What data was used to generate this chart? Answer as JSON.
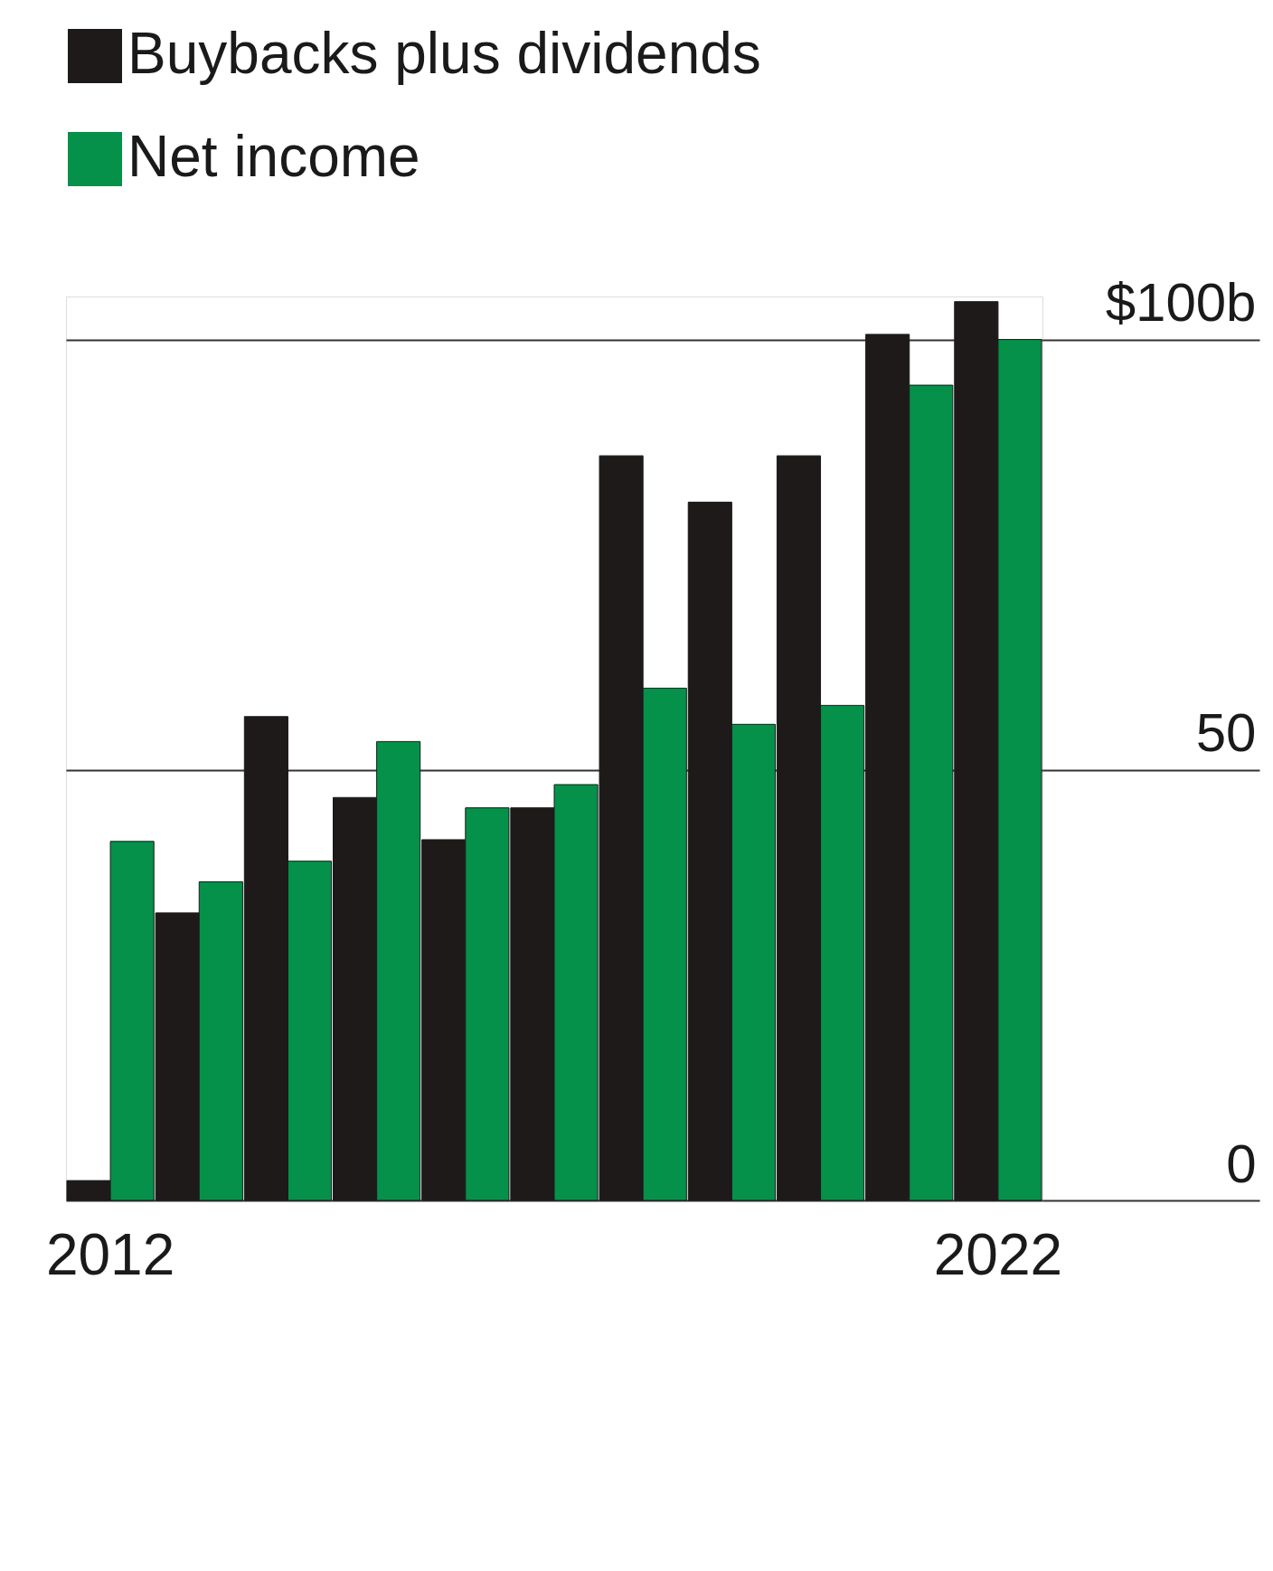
{
  "chart_data": {
    "type": "bar",
    "categories": [
      "2012",
      null,
      null,
      null,
      null,
      null,
      null,
      null,
      null,
      null,
      "2022"
    ],
    "series": [
      {
        "name": "Buybacks plus dividends",
        "color": "#1e1a1a",
        "values": [
          2.3,
          33.4,
          56.2,
          46.8,
          41.9,
          45.6,
          86.5,
          81.1,
          86.5,
          100.6,
          104.4
        ]
      },
      {
        "name": "Net income",
        "color": "#05914a",
        "values": [
          41.7,
          37.0,
          39.4,
          53.3,
          45.6,
          48.3,
          59.5,
          55.3,
          57.5,
          94.7,
          100.0
        ]
      }
    ],
    "ylim": [
      0,
      105
    ],
    "yticks": [
      0,
      50,
      {
        "value": 100,
        "label": "$100b"
      }
    ],
    "grid": "y",
    "legend": "top left"
  }
}
